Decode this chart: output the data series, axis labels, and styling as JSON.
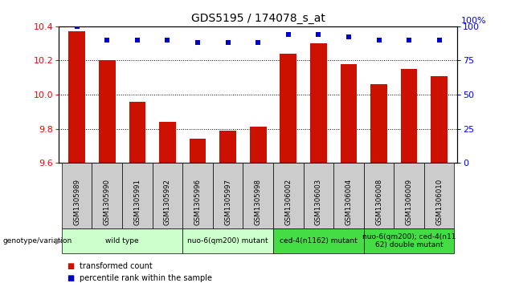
{
  "title": "GDS5195 / 174078_s_at",
  "samples": [
    "GSM1305989",
    "GSM1305990",
    "GSM1305991",
    "GSM1305992",
    "GSM1305996",
    "GSM1305997",
    "GSM1305998",
    "GSM1306002",
    "GSM1306003",
    "GSM1306004",
    "GSM1306008",
    "GSM1306009",
    "GSM1306010"
  ],
  "transformed_count": [
    10.37,
    10.2,
    9.96,
    9.84,
    9.74,
    9.79,
    9.81,
    10.24,
    10.3,
    10.18,
    10.06,
    10.15,
    10.11
  ],
  "percentile_rank": [
    100,
    90,
    90,
    90,
    88,
    88,
    88,
    94,
    94,
    92,
    90,
    90,
    90
  ],
  "ylim_left": [
    9.6,
    10.4
  ],
  "ylim_right": [
    0,
    100
  ],
  "yticks_left": [
    9.6,
    9.8,
    10.0,
    10.2,
    10.4
  ],
  "yticks_right": [
    0,
    25,
    50,
    75,
    100
  ],
  "bar_color": "#cc1100",
  "dot_color": "#0000cc",
  "groups": [
    {
      "label": "wild type",
      "indices": [
        0,
        1,
        2,
        3
      ],
      "color": "#ccffcc"
    },
    {
      "label": "nuo-6(qm200) mutant",
      "indices": [
        4,
        5,
        6
      ],
      "color": "#ccffcc"
    },
    {
      "label": "ced-4(n1162) mutant",
      "indices": [
        7,
        8,
        9
      ],
      "color": "#44dd44"
    },
    {
      "label": "nuo-6(qm200); ced-4(n11\n62) double mutant",
      "indices": [
        10,
        11,
        12
      ],
      "color": "#44dd44"
    }
  ],
  "genotype_label": "genotype/variation",
  "legend_items": [
    {
      "label": "transformed count",
      "color": "#cc1100"
    },
    {
      "label": "percentile rank within the sample",
      "color": "#0000cc"
    }
  ],
  "background_color": "#ffffff",
  "tick_box_bg": "#cccccc",
  "xlim": [
    -0.6,
    12.6
  ]
}
